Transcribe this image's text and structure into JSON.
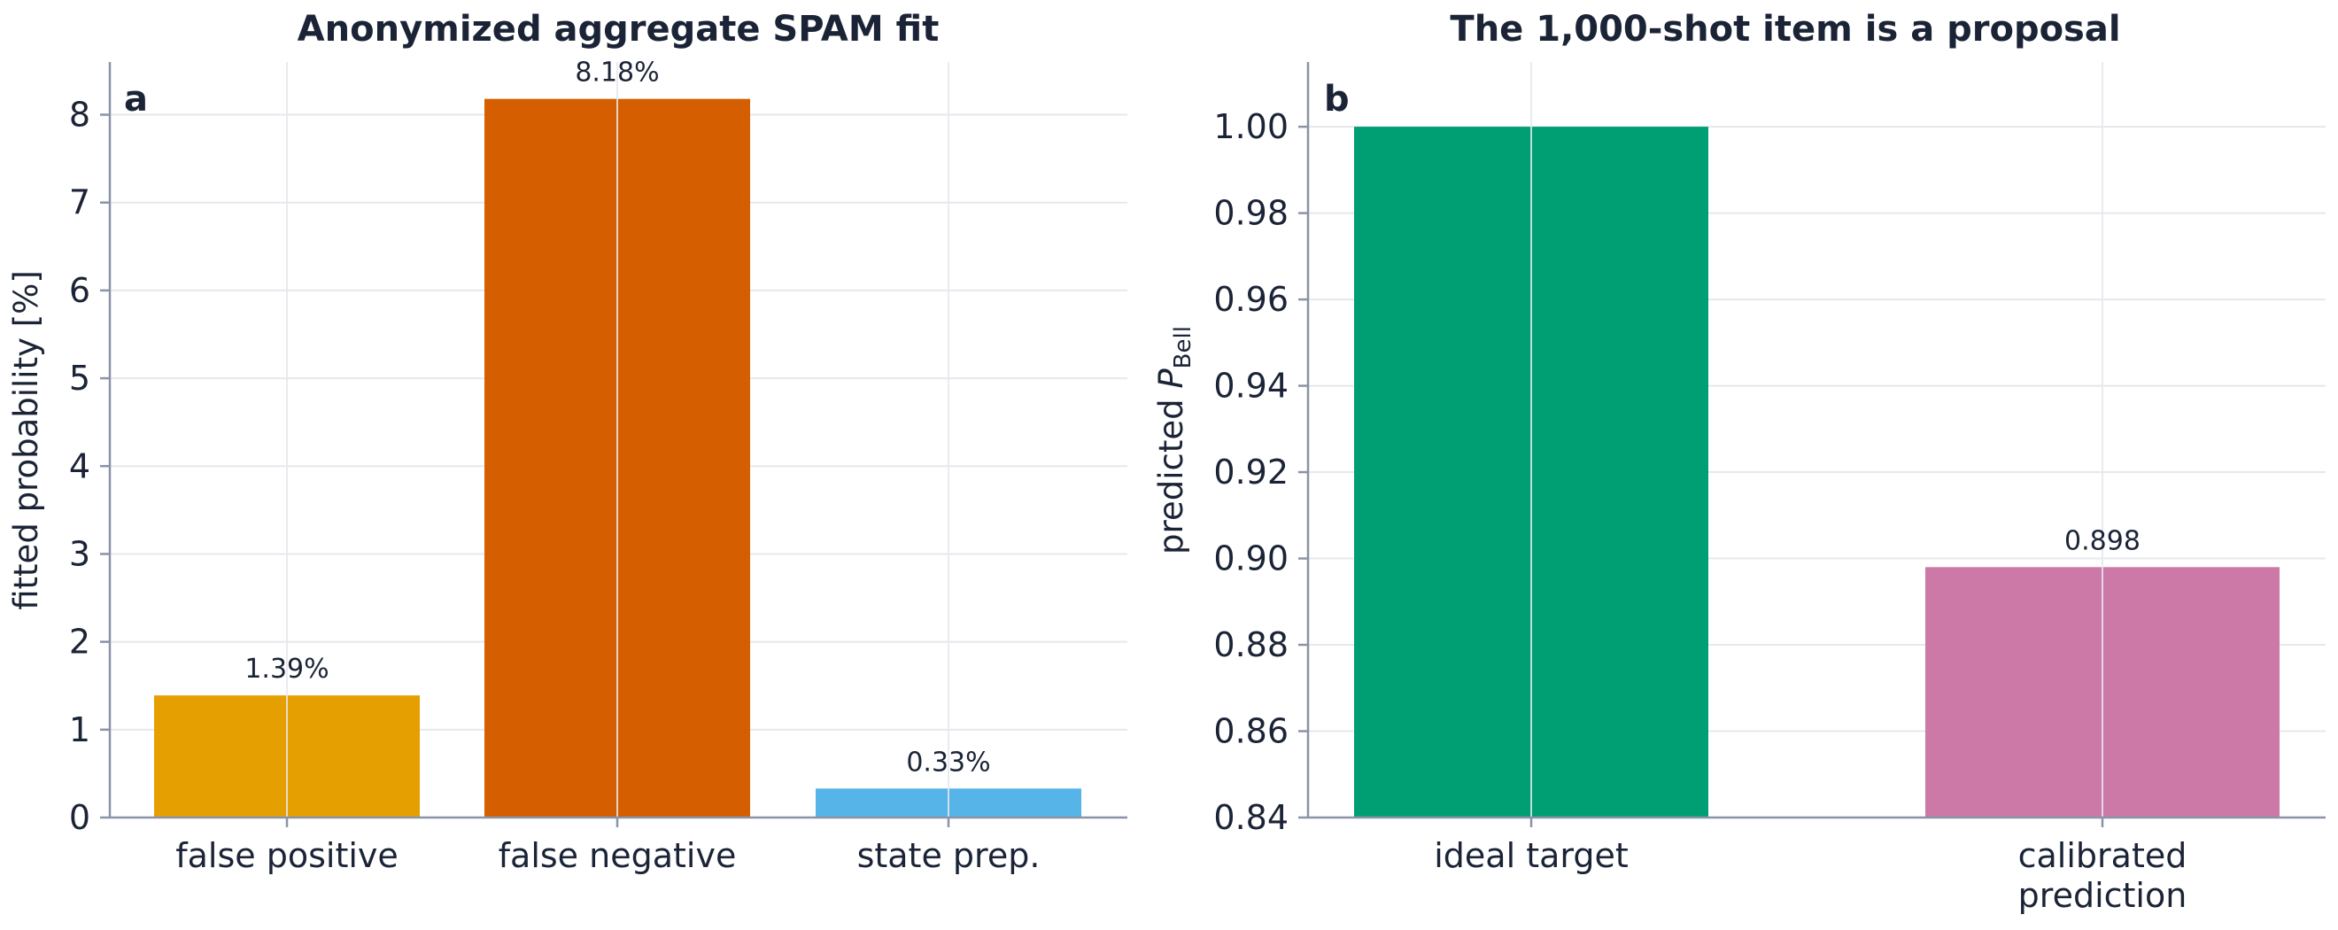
{
  "chart_data": [
    {
      "type": "bar",
      "panel_label": "a",
      "title": "Anonymized aggregate SPAM fit",
      "xlabel": "",
      "ylabel": "fitted probability [%]",
      "ylim": [
        0,
        8.6
      ],
      "yticks": [
        0,
        1,
        2,
        3,
        4,
        5,
        6,
        7,
        8
      ],
      "ytick_labels": [
        "0",
        "1",
        "2",
        "3",
        "4",
        "5",
        "6",
        "7",
        "8"
      ],
      "categories": [
        "false positive",
        "false negative",
        "state prep."
      ],
      "values": [
        1.39,
        8.18,
        0.33
      ],
      "value_labels": [
        "1.39%",
        "8.18%",
        "0.33%"
      ],
      "colors": [
        "#E69F00",
        "#D55E00",
        "#56B4E9"
      ],
      "grid": true
    },
    {
      "type": "bar",
      "panel_label": "b",
      "title": "The 1,000-shot item is a proposal",
      "xlabel": "",
      "ylabel_prefix": "predicted ",
      "ylabel_symbol": "P",
      "ylabel_subscript": "Bell",
      "ylim": [
        0.84,
        1.015
      ],
      "yticks": [
        0.84,
        0.86,
        0.88,
        0.9,
        0.92,
        0.94,
        0.96,
        0.98,
        1.0
      ],
      "ytick_labels": [
        "0.84",
        "0.86",
        "0.88",
        "0.90",
        "0.92",
        "0.94",
        "0.96",
        "0.98",
        "1.00"
      ],
      "categories": [
        [
          "ideal target"
        ],
        [
          "calibrated",
          "prediction"
        ]
      ],
      "values": [
        1.0,
        0.898
      ],
      "value_labels": [
        "",
        "0.898"
      ],
      "colors": [
        "#009E73",
        "#CC79A7"
      ],
      "grid": true
    }
  ]
}
